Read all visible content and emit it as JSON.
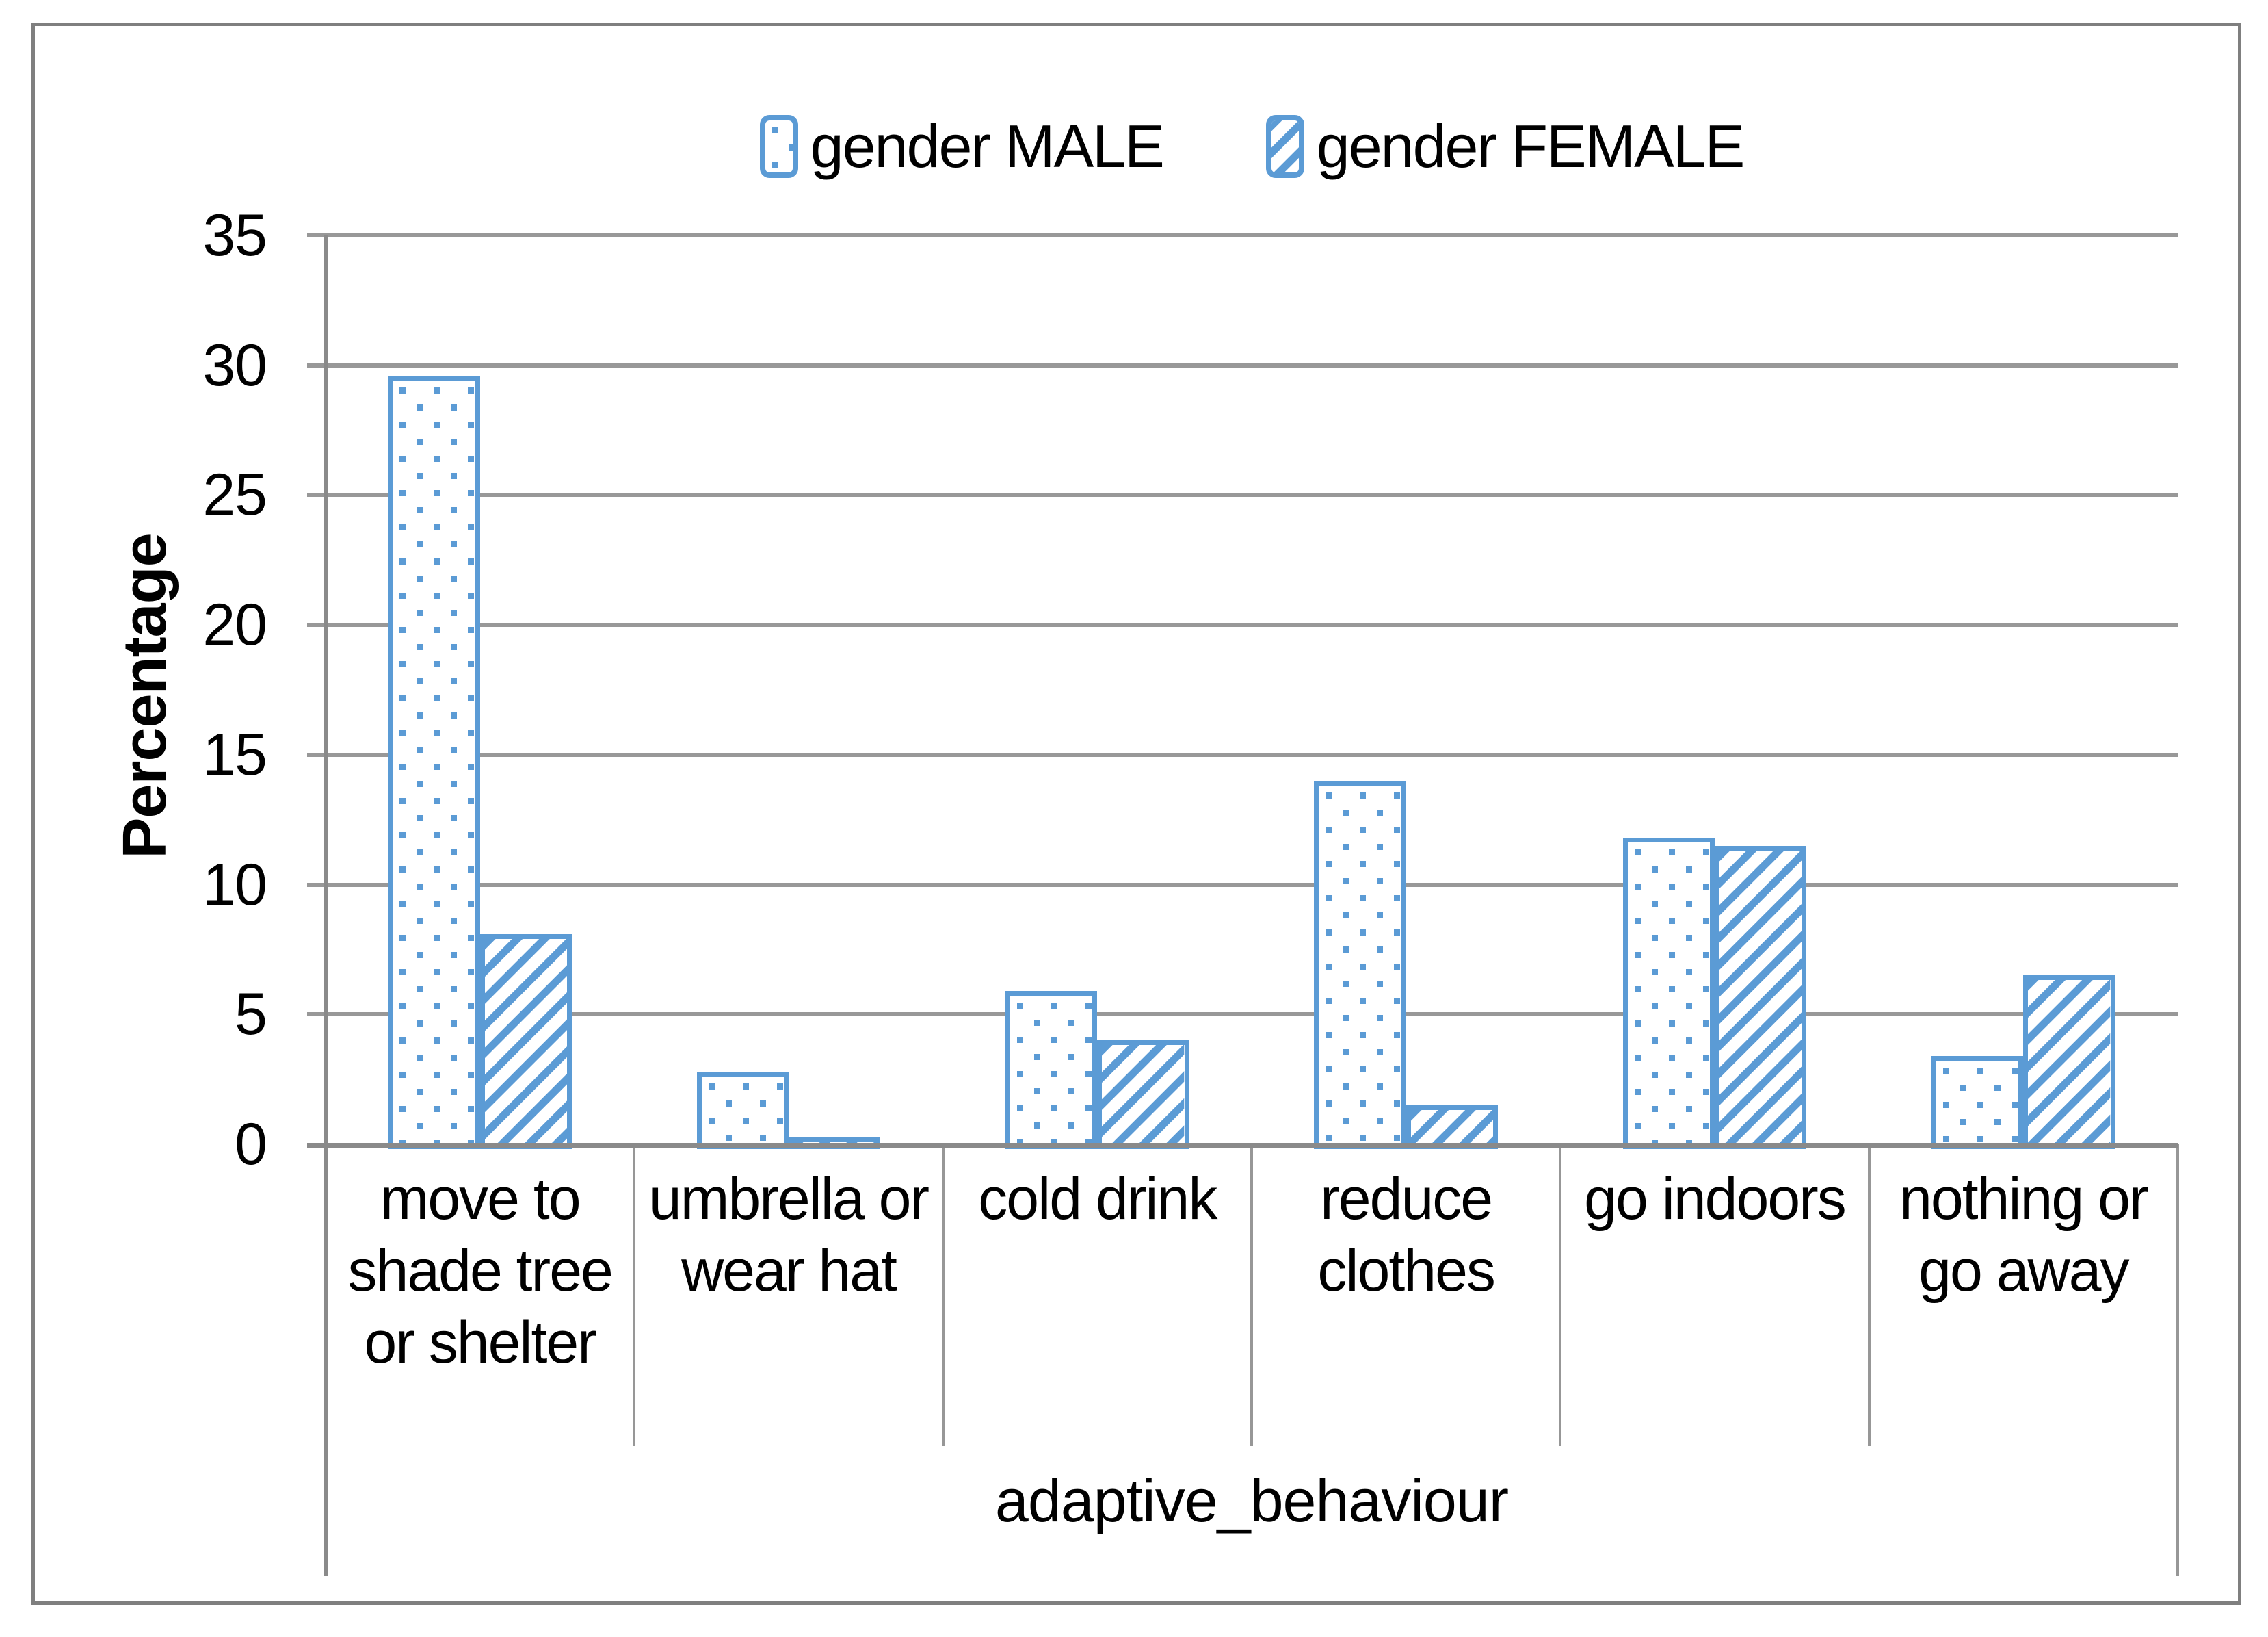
{
  "chart_data": {
    "type": "bar",
    "categories": [
      "move to shade tree or shelter",
      "umbrella or wear hat",
      "cold drink",
      "reduce clothes",
      "go indoors",
      "nothing or go away"
    ],
    "series": [
      {
        "name": "gender MALE",
        "pattern": "dots",
        "values": [
          29.6,
          2.8,
          5.9,
          14.0,
          11.8,
          3.4
        ]
      },
      {
        "name": "gender FEMALE",
        "pattern": "hatch",
        "values": [
          8.1,
          0.3,
          4.0,
          1.5,
          11.5,
          6.5
        ]
      }
    ],
    "xlabel": "adaptive_behaviour",
    "ylabel": "Percentage",
    "ylim": [
      0,
      35
    ],
    "yticks": [
      0,
      5,
      10,
      15,
      20,
      25,
      30,
      35
    ],
    "grid": "horizontal gridlines on",
    "legend_position": "top-center",
    "colors": {
      "bar_outline": "#5B9BD5",
      "gridline": "#989898",
      "axis_line": "#8A8A8A",
      "frame_border": "#7F7F7F",
      "text": "#000000",
      "background": "#FFFFFF"
    }
  },
  "legend": {
    "male_label": "gender MALE",
    "female_label": "gender FEMALE"
  }
}
